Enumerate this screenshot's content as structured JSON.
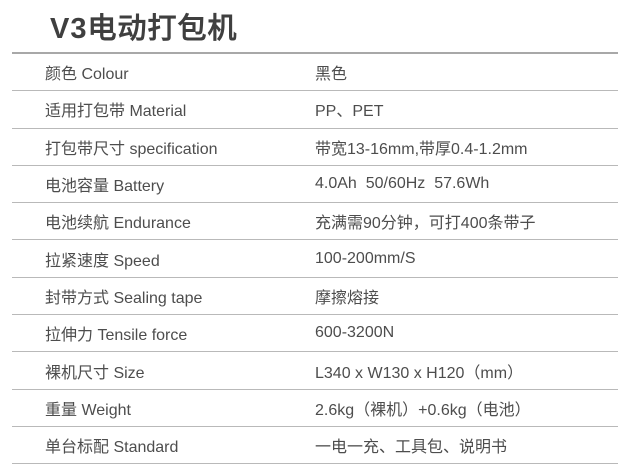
{
  "page": {
    "title": "V3电动打包机"
  },
  "spec_table": {
    "rows": [
      {
        "label": "颜色 Colour",
        "value": "黑色"
      },
      {
        "label": "适用打包带 Material",
        "value": "PP、PET"
      },
      {
        "label": "打包带尺寸 specification",
        "value": "带宽13-16mm,带厚0.4-1.2mm"
      },
      {
        "label": "电池容量 Battery",
        "value": "4.0Ah  50/60Hz  57.6Wh"
      },
      {
        "label": "电池续航 Endurance",
        "value": "充满需90分钟，可打400条带子"
      },
      {
        "label": "拉紧速度 Speed",
        "value": "100-200mm/S"
      },
      {
        "label": "封带方式 Sealing tape",
        "value": "摩擦熔接"
      },
      {
        "label": "拉伸力 Tensile force",
        "value": "600-3200N"
      },
      {
        "label": "裸机尺寸 Size",
        "value": "L340 x W130 x H120（mm）"
      },
      {
        "label": "重量 Weight",
        "value": "2.6kg（裸机）+0.6kg（电池）"
      },
      {
        "label": "单台标配 Standard",
        "value": "一电一充、工具包、说明书"
      }
    ]
  },
  "colors": {
    "background": "#ffffff",
    "title_text": "#3f3f3f",
    "body_text": "#4d4d4d",
    "title_divider": "#a8a8a8",
    "row_divider": "#b9b9b9"
  }
}
